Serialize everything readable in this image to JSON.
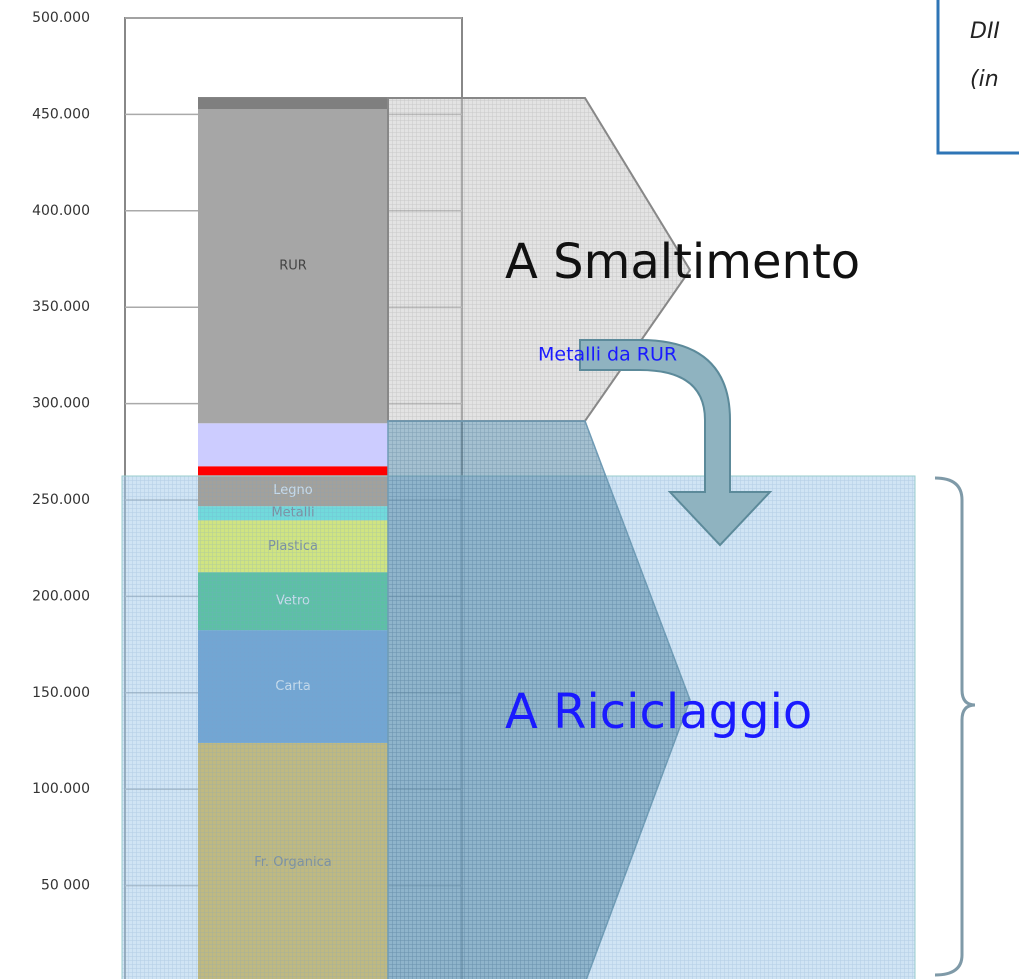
{
  "chart_data": {
    "type": "stacked_bar",
    "series": [
      {
        "name": "Fr. Organica",
        "color": "#d9a000",
        "values": [
          124000
        ]
      },
      {
        "name": "Carta",
        "color": "#2e75b6",
        "values": [
          58500
        ]
      },
      {
        "name": "Vetro",
        "color": "#00b050",
        "values": [
          30000
        ]
      },
      {
        "name": "Plastica",
        "color": "#ffff00",
        "values": [
          27000
        ]
      },
      {
        "name": "Metalli",
        "color": "#2de8c8",
        "values": [
          7300
        ]
      },
      {
        "name": "Legno",
        "color": "#9b6a3a",
        "values": [
          16000
        ]
      },
      {
        "name": null,
        "color": "#ff0000",
        "values": [
          4700
        ]
      },
      {
        "name": null,
        "color": "#ccccff",
        "values": [
          22300
        ]
      },
      {
        "name": "RUR",
        "color": "#a6a6a6",
        "values": [
          163000
        ]
      },
      {
        "name": null,
        "color": "#7f7f7f",
        "values": [
          6200
        ]
      }
    ],
    "ylim": [
      0,
      500000
    ],
    "yticks": [
      {
        "value": 50000,
        "label": "50 000"
      },
      {
        "value": 100000,
        "label": "100.000"
      },
      {
        "value": 150000,
        "label": "150.000"
      },
      {
        "value": 200000,
        "label": "200.000"
      },
      {
        "value": 250000,
        "label": "250.000"
      },
      {
        "value": 300000,
        "label": "300.000"
      },
      {
        "value": 350000,
        "label": "350.000"
      },
      {
        "value": 400000,
        "label": "400.000"
      },
      {
        "value": 450000,
        "label": "450.000"
      },
      {
        "value": 500000,
        "label": "500.000"
      }
    ],
    "grid": true,
    "annotations": [
      "A Smaltimento",
      "A Riciclaggio",
      "Metalli da RUR",
      "DII",
      "(in"
    ]
  }
}
